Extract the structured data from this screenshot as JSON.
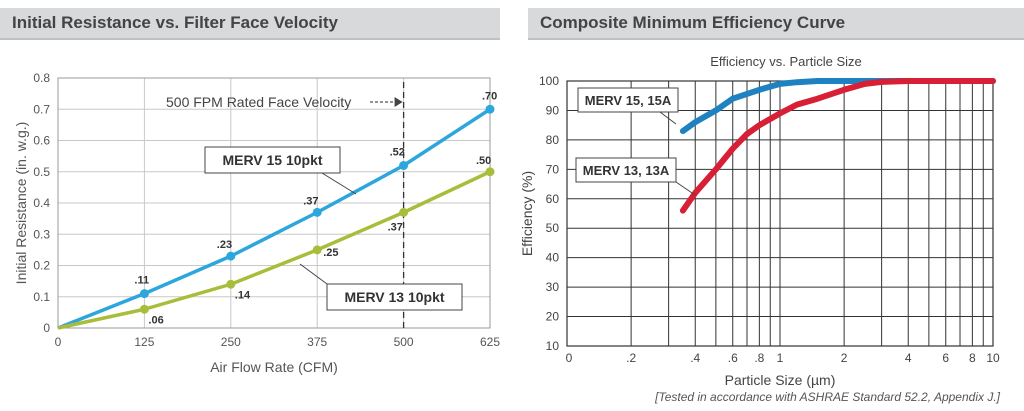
{
  "left_panel": {
    "header": "Initial Resistance vs. Filter Face Velocity"
  },
  "right_panel": {
    "header": "Composite Minimum Efficiency Curve"
  },
  "footnote": "[Tested in accordance with ASHRAE Standard 52.2, Appendix J.]",
  "colors": {
    "merv15": "#2da6dd",
    "merv13": "#a8bd3a",
    "merv15_eff": "#1e82c0",
    "merv13_eff": "#d71f36"
  },
  "chart_data": [
    {
      "type": "line",
      "title": "",
      "xlabel": "Air Flow Rate (CFM)",
      "ylabel": "Initial Resistance (in. w.g.)",
      "xlim": [
        0,
        625
      ],
      "ylim": [
        0,
        0.8
      ],
      "x_ticks": [
        "0",
        "125",
        "250",
        "375",
        "500",
        "625"
      ],
      "y_ticks": [
        "0",
        "0.1",
        "0.2",
        "0.3",
        "0.4",
        "0.5",
        "0.6",
        "0.7",
        "0.8"
      ],
      "reference_line": {
        "x": 500,
        "label": "500 FPM Rated Face Velocity"
      },
      "grid": true,
      "series": [
        {
          "name": "MERV 15 10pkt",
          "x": [
            0,
            125,
            250,
            375,
            500,
            625
          ],
          "values": [
            0,
            0.11,
            0.23,
            0.37,
            0.52,
            0.7
          ],
          "labels": [
            "",
            ".11",
            ".23",
            ".37",
            ".52",
            ".70"
          ]
        },
        {
          "name": "MERV 13 10pkt",
          "x": [
            0,
            125,
            250,
            375,
            500,
            625
          ],
          "values": [
            0,
            0.06,
            0.14,
            0.25,
            0.37,
            0.5
          ],
          "labels": [
            "",
            ".06",
            ".14",
            ".25",
            ".37",
            ".50"
          ]
        }
      ]
    },
    {
      "type": "line",
      "title": "Efficiency vs. Particle Size",
      "xlabel": "Particle Size (µm)",
      "ylabel": "Efficiency (%)",
      "xscale": "log",
      "xlim": [
        0.1,
        10
      ],
      "ylim": [
        10,
        100
      ],
      "x_ticks": [
        {
          "value": 0.1,
          "label": "0"
        },
        {
          "value": 0.2,
          "label": ".2"
        },
        {
          "value": 0.4,
          "label": ".4"
        },
        {
          "value": 0.6,
          "label": ".6"
        },
        {
          "value": 0.8,
          "label": ".8"
        },
        {
          "value": 1,
          "label": "1"
        },
        {
          "value": 2,
          "label": "2"
        },
        {
          "value": 4,
          "label": "4"
        },
        {
          "value": 6,
          "label": "6"
        },
        {
          "value": 8,
          "label": "8"
        },
        {
          "value": 10,
          "label": "10"
        }
      ],
      "y_ticks": [
        10,
        20,
        30,
        40,
        50,
        60,
        70,
        80,
        90,
        100
      ],
      "grid": true,
      "series": [
        {
          "name": "MERV 15, 15A",
          "x": [
            0.35,
            0.4,
            0.5,
            0.6,
            0.8,
            1,
            1.2,
            1.5,
            2,
            3,
            5,
            10
          ],
          "values": [
            83,
            86,
            90,
            94,
            97,
            99,
            99.6,
            100,
            100,
            100,
            100,
            100
          ]
        },
        {
          "name": "MERV 13, 13A",
          "x": [
            0.35,
            0.4,
            0.5,
            0.6,
            0.7,
            0.8,
            1,
            1.2,
            1.5,
            2,
            2.5,
            3,
            4,
            5,
            10
          ],
          "values": [
            56,
            62,
            70,
            77,
            82,
            85,
            89,
            92,
            94,
            97,
            99,
            99.7,
            100,
            100,
            100
          ]
        }
      ]
    }
  ]
}
